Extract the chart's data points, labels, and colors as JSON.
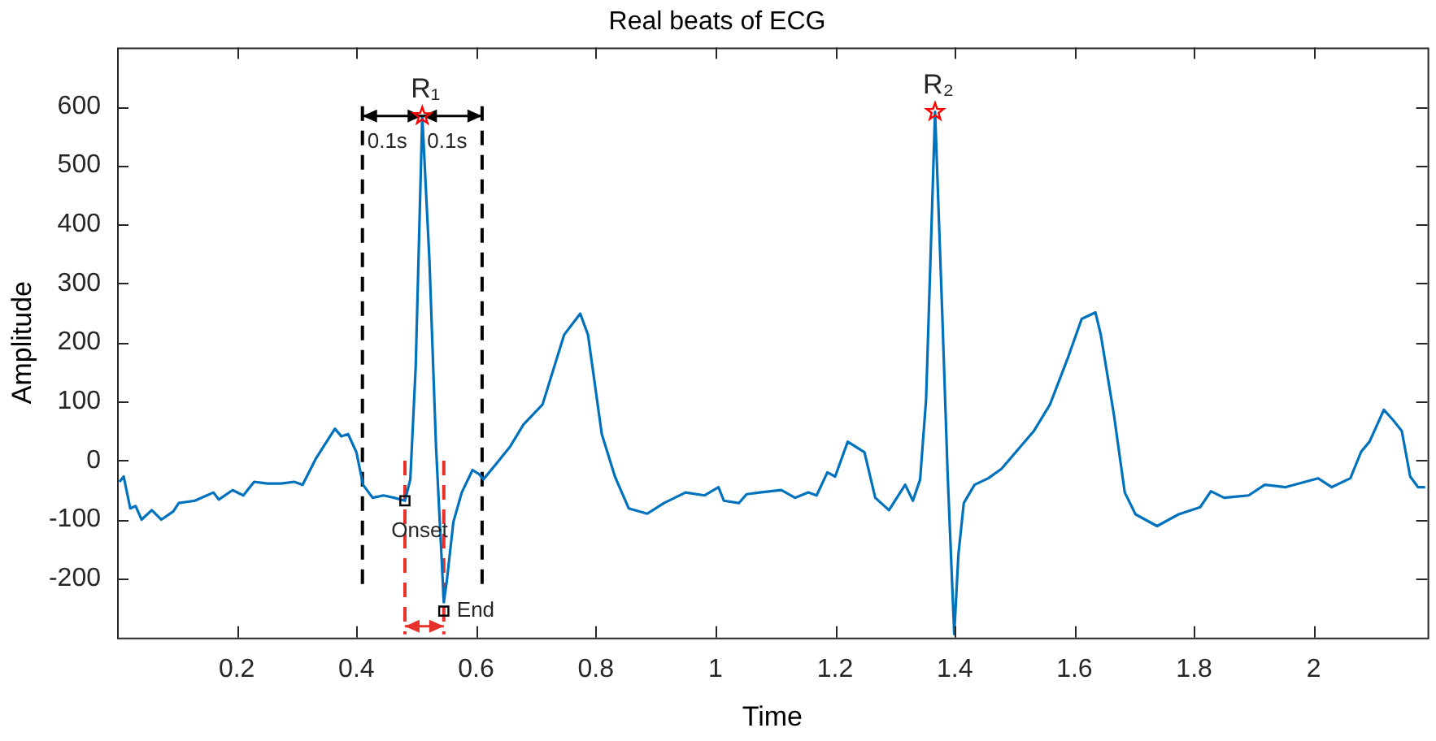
{
  "chart_data": {
    "type": "line",
    "title": "Real beats of ECG",
    "xlabel": "Time",
    "ylabel": "Amplitude",
    "xlim": [
      0,
      2.19
    ],
    "xticks": [
      0.2,
      0.4,
      0.6,
      0.8,
      1,
      1.2,
      1.4,
      1.6,
      1.8,
      2
    ],
    "ylim": [
      -300,
      700
    ],
    "yticks": [
      -200,
      -100,
      0,
      100,
      200,
      300,
      400,
      500,
      600
    ],
    "grid": false,
    "legend": false,
    "marker": "none",
    "line_style": "solid",
    "series": [
      {
        "color": "#0072bd",
        "x": [
          0.004,
          0.011,
          0.022,
          0.031,
          0.041,
          0.058,
          0.074,
          0.094,
          0.103,
          0.13,
          0.161,
          0.17,
          0.193,
          0.211,
          0.229,
          0.251,
          0.274,
          0.296,
          0.31,
          0.332,
          0.364,
          0.375,
          0.386,
          0.4,
          0.411,
          0.427,
          0.445,
          0.463,
          0.481,
          0.49,
          0.499,
          0.51,
          0.522,
          0.533,
          0.546,
          0.551,
          0.562,
          0.576,
          0.594,
          0.605,
          0.612,
          0.634,
          0.657,
          0.679,
          0.711,
          0.747,
          0.774,
          0.787,
          0.81,
          0.832,
          0.855,
          0.886,
          0.914,
          0.95,
          0.982,
          1.005,
          1.014,
          1.039,
          1.052,
          1.074,
          1.11,
          1.133,
          1.155,
          1.169,
          1.187,
          1.2,
          1.221,
          1.249,
          1.267,
          1.29,
          1.317,
          1.33,
          1.342,
          1.352,
          1.367,
          1.379,
          1.388,
          1.399,
          1.406,
          1.415,
          1.433,
          1.456,
          1.478,
          1.505,
          1.532,
          1.559,
          1.59,
          1.612,
          1.635,
          1.644,
          1.666,
          1.684,
          1.702,
          1.738,
          1.774,
          1.81,
          1.828,
          1.85,
          1.891,
          1.918,
          1.953,
          2.007,
          2.03,
          2.061,
          2.079,
          2.093,
          2.117,
          2.133,
          2.147,
          2.161,
          2.174,
          2.186
        ],
        "values": [
          -36,
          -27,
          -81,
          -77,
          -100,
          -84,
          -100,
          -86,
          -72,
          -68,
          -54,
          -66,
          -50,
          -59,
          -36,
          -39,
          -39,
          -36,
          -41,
          3,
          54,
          41,
          45,
          14,
          -41,
          -63,
          -59,
          -63,
          -68,
          -32,
          158,
          584,
          339,
          23,
          -240,
          -204,
          -104,
          -54,
          -16,
          -23,
          -32,
          -5,
          24,
          61,
          95,
          213,
          249,
          213,
          45,
          -27,
          -81,
          -90,
          -72,
          -54,
          -59,
          -45,
          -68,
          -72,
          -57,
          -54,
          -50,
          -63,
          -54,
          -59,
          -20,
          -27,
          32,
          14,
          -63,
          -84,
          -41,
          -68,
          -32,
          104,
          591,
          249,
          -23,
          -294,
          -159,
          -72,
          -41,
          -30,
          -14,
          18,
          50,
          95,
          177,
          240,
          251,
          213,
          77,
          -54,
          -91,
          -111,
          -91,
          -79,
          -52,
          -63,
          -59,
          -41,
          -45,
          -30,
          -45,
          -30,
          15,
          32,
          86,
          68,
          50,
          -27,
          -45,
          -45
        ]
      },
      {
        "type": "scatter",
        "color": "#ff0000",
        "marker": "star",
        "x": [
          0.51,
          1.367
        ],
        "values": [
          584,
          591
        ]
      },
      {
        "type": "scatter",
        "color": "#000000",
        "marker": "square",
        "x": [
          0.481,
          0.546
        ],
        "values": [
          -68,
          -255
        ]
      }
    ],
    "ref_lines": [
      {
        "axis": "x",
        "value": 0.41,
        "color": "#000000",
        "line_style": "dashed"
      },
      {
        "axis": "x",
        "value": 0.61,
        "color": "#000000",
        "line_style": "dashed"
      },
      {
        "axis": "x",
        "value": 0.481,
        "color": "#e8302a",
        "line_style": "dashed"
      },
      {
        "axis": "x",
        "value": 0.546,
        "color": "#e8302a",
        "line_style": "dashed"
      }
    ],
    "annotations": [
      {
        "text": "R₁",
        "x": 0.51,
        "y": 584
      },
      {
        "text": "R₂",
        "x": 1.367,
        "y": 591
      },
      {
        "text": "0.1s",
        "x": 0.41,
        "y": 584
      },
      {
        "text": "0.1s",
        "x": 0.51,
        "y": 584
      },
      {
        "text": "Onset",
        "x": 0.481,
        "y": -68
      },
      {
        "text": "End",
        "x": 0.546,
        "y": -255
      }
    ]
  }
}
